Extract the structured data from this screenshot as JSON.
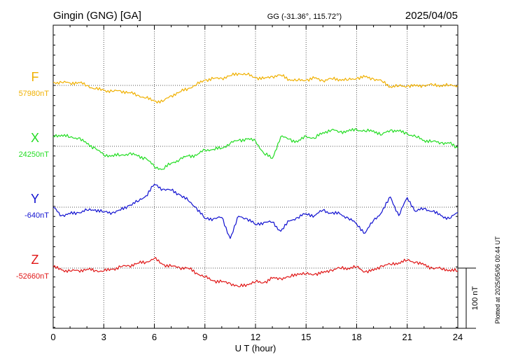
{
  "chart_data": {
    "type": "line",
    "station": "Gingin (GNG)  [GA]",
    "coords": "GG (-31.36°, 115.72°)",
    "date": "2025/04/05",
    "xlabel": "U T (hour)",
    "xlim": [
      0,
      24
    ],
    "x_ticks": [
      0,
      3,
      6,
      9,
      12,
      15,
      18,
      21,
      24
    ],
    "grid": true,
    "scale_bar_label": "100 nT",
    "plotted_note": "Plotted at 2025/05/06 00:44 UT",
    "series": [
      {
        "name": "F",
        "baseline": "57980nT",
        "color": "#f0b000",
        "x": [
          0,
          0.5,
          1,
          1.5,
          2,
          2.5,
          3,
          3.5,
          4,
          4.5,
          5,
          5.5,
          6,
          6.5,
          7,
          7.5,
          8,
          8.5,
          9,
          9.5,
          10,
          10.5,
          11,
          11.5,
          12,
          12.5,
          13,
          13.5,
          14,
          14.5,
          15,
          15.5,
          16,
          16.5,
          17,
          17.5,
          18,
          18.5,
          19,
          19.5,
          20,
          20.5,
          21,
          21.5,
          22,
          22.5,
          23,
          23.5,
          24
        ],
        "y": [
          5,
          5,
          4,
          5,
          0,
          -6,
          -8,
          -10,
          -9,
          -12,
          -16,
          -21,
          -26,
          -27,
          -17,
          -11,
          -5,
          1,
          9,
          11,
          12,
          16,
          20,
          18,
          13,
          11,
          15,
          17,
          10,
          8,
          9,
          12,
          8,
          11,
          10,
          9,
          12,
          14,
          11,
          7,
          -2,
          -1,
          -1,
          -1,
          0,
          1,
          0,
          0,
          0
        ]
      },
      {
        "name": "X",
        "baseline": "24250nT",
        "color": "#22dd22",
        "x": [
          0,
          0.5,
          1,
          1.5,
          2,
          2.5,
          3,
          3.5,
          4,
          4.5,
          5,
          5.5,
          6,
          6.5,
          7,
          7.5,
          8,
          8.5,
          9,
          9.5,
          10,
          10.5,
          11,
          11.5,
          12,
          12.5,
          13,
          13.5,
          14,
          14.5,
          15,
          15.5,
          16,
          16.5,
          17,
          17.5,
          18,
          18.5,
          19,
          19.5,
          20,
          20.5,
          21,
          21.5,
          22,
          22.5,
          23,
          23.5,
          24
        ],
        "y": [
          17,
          19,
          15,
          14,
          4,
          -3,
          -15,
          -15,
          -15,
          -12,
          -16,
          -20,
          -34,
          -38,
          -28,
          -22,
          -16,
          -15,
          -6,
          -5,
          -3,
          5,
          10,
          12,
          9,
          -12,
          -20,
          16,
          12,
          7,
          17,
          13,
          23,
          27,
          24,
          25,
          28,
          25,
          26,
          19,
          27,
          25,
          21,
          16,
          10,
          8,
          6,
          5,
          -3
        ]
      },
      {
        "name": "Y",
        "baseline": "-640nT",
        "color": "#1010d0",
        "x": [
          0,
          0.5,
          1,
          1.5,
          2,
          2.5,
          3,
          3.5,
          4,
          4.5,
          5,
          5.5,
          6,
          6.5,
          7,
          7.5,
          8,
          8.5,
          9,
          9.5,
          10,
          10.5,
          11,
          11.5,
          12,
          12.5,
          13,
          13.5,
          14,
          14.5,
          15,
          15.5,
          16,
          16.5,
          17,
          17.5,
          18,
          18.5,
          19,
          19.5,
          20,
          20.5,
          21,
          21.5,
          22,
          22.5,
          23,
          23.5,
          24
        ],
        "y": [
          0,
          -14,
          -11,
          -9,
          -5,
          -4,
          -8,
          -9,
          -5,
          3,
          9,
          19,
          38,
          30,
          28,
          21,
          11,
          -1,
          -19,
          -19,
          -17,
          -52,
          -15,
          -19,
          -29,
          -25,
          -25,
          -40,
          -23,
          -17,
          -11,
          -14,
          -5,
          -10,
          -11,
          -18,
          -28,
          -43,
          -22,
          -8,
          17,
          -14,
          16,
          -7,
          -2,
          -7,
          -14,
          -19,
          -9
        ]
      },
      {
        "name": "Z",
        "baseline": "-52660nT",
        "color": "#e01515",
        "x": [
          0,
          0.5,
          1,
          1.5,
          2,
          2.5,
          3,
          3.5,
          4,
          4.5,
          5,
          5.5,
          6,
          6.5,
          7,
          7.5,
          8,
          8.5,
          9,
          9.5,
          10,
          10.5,
          11,
          11.5,
          12,
          12.5,
          13,
          13.5,
          14,
          14.5,
          15,
          15.5,
          16,
          16.5,
          17,
          17.5,
          18,
          18.5,
          19,
          19.5,
          20,
          20.5,
          21,
          21.5,
          22,
          22.5,
          23,
          23.5,
          24
        ],
        "y": [
          2,
          -3,
          -5,
          -4,
          -2,
          -4,
          -5,
          -2,
          2,
          4,
          8,
          10,
          16,
          6,
          3,
          1,
          0,
          -8,
          -15,
          -21,
          -23,
          -25,
          -31,
          -27,
          -23,
          -24,
          -17,
          -17,
          -15,
          -9,
          -10,
          -10,
          -8,
          -3,
          0,
          0,
          2,
          -6,
          -4,
          4,
          6,
          9,
          13,
          10,
          5,
          0,
          -1,
          -3,
          -5
        ]
      }
    ]
  }
}
